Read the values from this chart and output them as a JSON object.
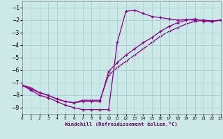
{
  "xlabel": "Windchill (Refroidissement éolien,°C)",
  "ylabel": "",
  "background_color": "#cce8e8",
  "grid_color": "#aad4d4",
  "line_color": "#880088",
  "xlim": [
    0,
    23
  ],
  "ylim": [
    -9.5,
    -0.5
  ],
  "yticks": [
    -9,
    -8,
    -7,
    -6,
    -5,
    -4,
    -3,
    -2,
    -1
  ],
  "xticks": [
    0,
    1,
    2,
    3,
    4,
    5,
    6,
    7,
    8,
    9,
    10,
    11,
    12,
    13,
    14,
    15,
    16,
    17,
    18,
    19,
    20,
    21,
    22,
    23
  ],
  "line1_x": [
    0,
    1,
    2,
    3,
    4,
    5,
    6,
    7,
    8,
    9,
    10,
    11,
    12,
    13,
    14,
    15,
    16,
    17,
    18,
    19,
    20,
    21,
    22,
    23
  ],
  "line1_y": [
    -7.2,
    -7.6,
    -8.0,
    -8.2,
    -8.5,
    -8.8,
    -9.0,
    -9.15,
    -9.15,
    -9.15,
    -9.15,
    -3.8,
    -1.3,
    -1.2,
    -1.45,
    -1.7,
    -1.8,
    -1.9,
    -2.0,
    -1.95,
    -2.0,
    -2.0,
    -2.05,
    -2.0
  ],
  "line2_x": [
    0,
    1,
    2,
    3,
    4,
    5,
    6,
    7,
    8,
    9,
    10,
    11,
    12,
    13,
    14,
    15,
    16,
    17,
    18,
    19,
    20,
    21,
    22,
    23
  ],
  "line2_y": [
    -7.2,
    -7.5,
    -7.8,
    -8.0,
    -8.3,
    -8.5,
    -8.6,
    -8.5,
    -8.5,
    -8.5,
    -6.1,
    -5.4,
    -4.8,
    -4.3,
    -3.8,
    -3.4,
    -2.9,
    -2.5,
    -2.2,
    -2.0,
    -1.9,
    -2.1,
    -2.1,
    -2.0
  ],
  "line3_x": [
    0,
    1,
    2,
    3,
    4,
    5,
    6,
    7,
    8,
    9,
    10,
    11,
    12,
    13,
    14,
    15,
    16,
    17,
    18,
    19,
    20,
    21,
    22,
    23
  ],
  "line3_y": [
    -7.2,
    -7.4,
    -7.8,
    -8.0,
    -8.3,
    -8.5,
    -8.6,
    -8.4,
    -8.4,
    -8.4,
    -6.4,
    -5.8,
    -5.3,
    -4.8,
    -4.3,
    -3.8,
    -3.3,
    -2.9,
    -2.6,
    -2.3,
    -2.1,
    -2.0,
    -2.1,
    -2.0
  ]
}
